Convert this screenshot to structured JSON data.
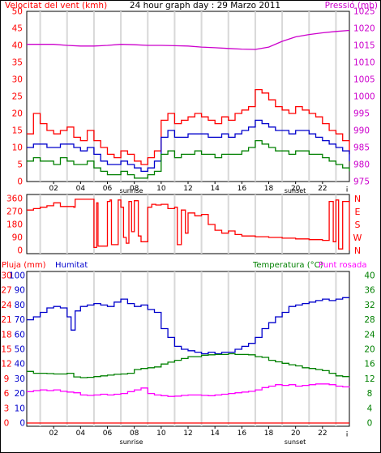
{
  "chart_data": [
    {
      "type": "line",
      "title": "24 hour graph day : 29 Marzo 2011",
      "left_axis_label": "Velocitat del vent (kmh)",
      "right_axis_label": "Pressió (mb)",
      "ylim_left": [
        0,
        50
      ],
      "ylim_right": [
        975,
        1025
      ],
      "left_ticks": [
        "0",
        "5",
        "10",
        "15",
        "20",
        "25",
        "30",
        "35",
        "40",
        "45",
        "50"
      ],
      "right_ticks": [
        "975",
        "980",
        "985",
        "990",
        "995",
        "1000",
        "1005",
        "1010",
        "1015",
        "1020",
        "1025"
      ],
      "x_ticks": [
        "02",
        "04",
        "06",
        "08",
        "10",
        "12",
        "14",
        "16",
        "18",
        "20",
        "22"
      ],
      "x_annotations": {
        "sunrise": "sunrise",
        "sunset": "sunset"
      },
      "x_range": [
        0,
        24
      ],
      "grid": true,
      "series": [
        {
          "color": "#ff0000",
          "axis": "left",
          "x": [
            0,
            0.5,
            1,
            1.5,
            2,
            2.5,
            3,
            3.5,
            4,
            4.5,
            5,
            5.5,
            6,
            6.5,
            7,
            7.5,
            8,
            8.5,
            9,
            9.5,
            10,
            10.5,
            11,
            11.5,
            12,
            12.5,
            13,
            13.5,
            14,
            14.5,
            15,
            15.5,
            16,
            16.5,
            17,
            17.5,
            18,
            18.5,
            19,
            19.5,
            20,
            20.5,
            21,
            21.5,
            22,
            22.5,
            23,
            23.5,
            24
          ],
          "values": [
            14,
            20,
            17,
            15,
            14,
            15,
            16,
            13,
            12,
            15,
            12,
            10,
            8,
            7,
            9,
            8,
            6,
            5,
            7,
            9,
            18,
            20,
            17,
            18,
            19,
            20,
            19,
            18,
            17,
            19,
            18,
            20,
            21,
            22,
            27,
            26,
            24,
            22,
            21,
            20,
            22,
            21,
            20,
            19,
            17,
            15,
            14,
            12,
            8
          ]
        },
        {
          "color": "#0000cc",
          "axis": "left",
          "x": [
            0,
            0.5,
            1,
            1.5,
            2,
            2.5,
            3,
            3.5,
            4,
            4.5,
            5,
            5.5,
            6,
            6.5,
            7,
            7.5,
            8,
            8.5,
            9,
            9.5,
            10,
            10.5,
            11,
            11.5,
            12,
            12.5,
            13,
            13.5,
            14,
            14.5,
            15,
            15.5,
            16,
            16.5,
            17,
            17.5,
            18,
            18.5,
            19,
            19.5,
            20,
            20.5,
            21,
            21.5,
            22,
            22.5,
            23,
            23.5,
            24
          ],
          "values": [
            10,
            11,
            11,
            10,
            10,
            11,
            11,
            10,
            9,
            10,
            8,
            6,
            5,
            5,
            6,
            5,
            4,
            3,
            4,
            6,
            13,
            15,
            13,
            13,
            14,
            14,
            14,
            13,
            13,
            14,
            13,
            14,
            15,
            16,
            18,
            17,
            16,
            15,
            15,
            14,
            15,
            15,
            14,
            13,
            12,
            11,
            10,
            9,
            6
          ]
        },
        {
          "color": "#008000",
          "axis": "left",
          "x": [
            0,
            0.5,
            1,
            1.5,
            2,
            2.5,
            3,
            3.5,
            4,
            4.5,
            5,
            5.5,
            6,
            6.5,
            7,
            7.5,
            8,
            8.5,
            9,
            9.5,
            10,
            10.5,
            11,
            11.5,
            12,
            12.5,
            13,
            13.5,
            14,
            14.5,
            15,
            15.5,
            16,
            16.5,
            17,
            17.5,
            18,
            18.5,
            19,
            19.5,
            20,
            20.5,
            21,
            21.5,
            22,
            22.5,
            23,
            23.5,
            24
          ],
          "values": [
            6,
            7,
            6,
            6,
            5,
            7,
            6,
            5,
            5,
            6,
            4,
            3,
            2,
            2,
            3,
            2,
            1,
            1,
            2,
            3,
            8,
            9,
            7,
            8,
            8,
            9,
            8,
            8,
            7,
            8,
            8,
            8,
            9,
            10,
            12,
            11,
            10,
            9,
            9,
            8,
            9,
            9,
            8,
            8,
            7,
            6,
            5,
            4,
            3
          ]
        },
        {
          "color": "#cc00cc",
          "axis": "right",
          "x": [
            0,
            1,
            2,
            3,
            4,
            5,
            6,
            7,
            8,
            9,
            10,
            11,
            12,
            13,
            14,
            15,
            16,
            17,
            18,
            19,
            20,
            21,
            22,
            23,
            24
          ],
          "values": [
            1015.3,
            1015.3,
            1015.3,
            1015,
            1014.8,
            1014.8,
            1015,
            1015.3,
            1015.2,
            1015,
            1015,
            1014.9,
            1014.8,
            1014.5,
            1014.3,
            1014.1,
            1013.9,
            1013.8,
            1014.5,
            1016.2,
            1017.5,
            1018.2,
            1018.7,
            1019.1,
            1019.4
          ]
        }
      ]
    },
    {
      "type": "line",
      "ylim": [
        0,
        360
      ],
      "left_ticks": [
        "0",
        "90",
        "180",
        "270",
        "360"
      ],
      "right_labels": [
        "N",
        "W",
        "S",
        "E",
        "N"
      ],
      "x_range": [
        0,
        24
      ],
      "grid": true,
      "series": [
        {
          "color": "#ff0000",
          "x": [
            0,
            0.5,
            1,
            1.5,
            2,
            2.5,
            3,
            3.5,
            3.6,
            4.9,
            5,
            5.2,
            5.3,
            6,
            6.2,
            6.3,
            6.8,
            7,
            7.2,
            7.4,
            7.6,
            7.8,
            8,
            8.3,
            8.5,
            9,
            9.3,
            9.6,
            10,
            10.5,
            11,
            11.2,
            11.5,
            11.8,
            12,
            12.5,
            13,
            13.5,
            14,
            14.5,
            15,
            15.5,
            16,
            17,
            18,
            19,
            20,
            21,
            22,
            22.5,
            22.8,
            23,
            23.2,
            23.5,
            24
          ],
          "values": [
            280,
            290,
            300,
            310,
            330,
            305,
            305,
            300,
            355,
            355,
            20,
            330,
            30,
            340,
            350,
            40,
            350,
            300,
            90,
            50,
            340,
            130,
            345,
            100,
            60,
            300,
            320,
            315,
            320,
            290,
            300,
            40,
            280,
            120,
            260,
            240,
            250,
            180,
            140,
            120,
            135,
            110,
            100,
            95,
            90,
            85,
            80,
            75,
            70,
            340,
            60,
            350,
            10,
            340,
            0
          ]
        }
      ]
    },
    {
      "type": "line",
      "left_axis_label_1": "Pluja (mm)",
      "left_axis_label_2": "Humitat",
      "right_axis_label_1": "Temperatura (°C)",
      "right_axis_label_2": "Punt rosada",
      "left_ticks_1": [
        "0",
        "3",
        "6",
        "9",
        "12",
        "15",
        "18",
        "21",
        "24",
        "27",
        "30"
      ],
      "left_ticks_2": [
        "0",
        "10",
        "20",
        "30",
        "40",
        "50",
        "60",
        "70",
        "80",
        "90",
        "100"
      ],
      "right_ticks": [
        "0",
        "4",
        "8",
        "12",
        "16",
        "20",
        "24",
        "28",
        "32",
        "36",
        "40"
      ],
      "ylim_rain": [
        0,
        30
      ],
      "ylim_humidity": [
        0,
        100
      ],
      "ylim_temperature": [
        0,
        40
      ],
      "x_ticks": [
        "02",
        "04",
        "06",
        "08",
        "10",
        "12",
        "14",
        "16",
        "18",
        "20",
        "22"
      ],
      "x_annotations": {
        "sunrise": "sunrise",
        "sunset": "sunset"
      },
      "x_range": [
        0,
        24
      ],
      "grid": true,
      "series": [
        {
          "color": "#0000cc",
          "axis": "humidity",
          "x": [
            0,
            0.5,
            1,
            1.5,
            2,
            2.5,
            3,
            3.3,
            3.6,
            4,
            4.5,
            5,
            5.5,
            6,
            6.5,
            7,
            7.5,
            8,
            8.5,
            9,
            9.5,
            10,
            10.5,
            11,
            11.5,
            12,
            12.5,
            13,
            13.5,
            14,
            14.5,
            15,
            15.5,
            16,
            16.5,
            17,
            17.5,
            18,
            18.5,
            19,
            19.5,
            20,
            20.5,
            21,
            21.5,
            22,
            22.5,
            23,
            23.5,
            24
          ],
          "values": [
            70,
            72,
            75,
            78,
            79,
            78,
            72,
            63,
            76,
            79,
            80,
            81,
            80,
            79,
            82,
            84,
            81,
            79,
            80,
            77,
            75,
            64,
            58,
            52,
            50,
            49,
            48,
            47,
            48,
            47,
            48,
            48,
            50,
            52,
            54,
            58,
            64,
            68,
            72,
            75,
            79,
            80,
            81,
            82,
            83,
            84,
            83,
            84,
            85,
            85
          ]
        },
        {
          "color": "#008000",
          "axis": "temperature",
          "x": [
            0,
            0.5,
            1,
            1.5,
            2,
            2.5,
            3,
            3.5,
            4,
            4.5,
            5,
            5.5,
            6,
            6.5,
            7,
            7.5,
            8,
            8.5,
            9,
            9.5,
            10,
            10.5,
            11,
            11.5,
            12,
            12.5,
            13,
            13.5,
            14,
            14.5,
            15,
            15.5,
            16,
            16.5,
            17,
            17.5,
            18,
            18.5,
            19,
            19.5,
            20,
            20.5,
            21,
            21.5,
            22,
            22.5,
            23,
            23.5,
            24
          ],
          "values": [
            14,
            13.5,
            13.5,
            13.4,
            13.3,
            13.3,
            13.5,
            12.5,
            12.3,
            12.4,
            12.6,
            12.8,
            13,
            13.2,
            13.3,
            13.5,
            14.5,
            14.8,
            15,
            15.2,
            16,
            16.5,
            17,
            17.5,
            18,
            18,
            18.4,
            18.5,
            18.6,
            18.6,
            18.8,
            18.6,
            18.6,
            18.5,
            18,
            17.8,
            17,
            16.6,
            16.2,
            15.8,
            15.5,
            15,
            14.8,
            14.5,
            14.2,
            13.5,
            12.8,
            12.6,
            12.5
          ]
        },
        {
          "color": "#ff00ff",
          "axis": "temperature",
          "x": [
            0,
            0.5,
            1,
            1.5,
            2,
            2.5,
            3,
            3.5,
            4,
            4.5,
            5,
            5.5,
            6,
            6.5,
            7,
            7.5,
            8,
            8.5,
            9,
            9.5,
            10,
            10.5,
            11,
            11.5,
            12,
            12.5,
            13,
            13.5,
            14,
            14.5,
            15,
            15.5,
            16,
            16.5,
            17,
            17.5,
            18,
            18.5,
            19,
            19.5,
            20,
            20.5,
            21,
            21.5,
            22,
            22.5,
            23,
            23.5,
            24
          ],
          "values": [
            8.5,
            8.8,
            9,
            8.8,
            9,
            8.6,
            8.4,
            8.2,
            7.6,
            7.5,
            7.6,
            7.8,
            7.6,
            7.8,
            8,
            8.5,
            9,
            9.5,
            8,
            7.6,
            7.4,
            7.2,
            7.3,
            7.5,
            7.6,
            7.6,
            7.5,
            7.4,
            7.6,
            7.8,
            8,
            8.2,
            8.4,
            8.6,
            9,
            9.6,
            10,
            10.4,
            10.2,
            10.4,
            10,
            10.2,
            10.4,
            10.6,
            10.6,
            10.4,
            10,
            9.8,
            9.6
          ]
        },
        {
          "color": "#ff0000",
          "axis": "rain",
          "x": [
            0,
            24
          ],
          "values": [
            0,
            0
          ]
        }
      ]
    }
  ]
}
